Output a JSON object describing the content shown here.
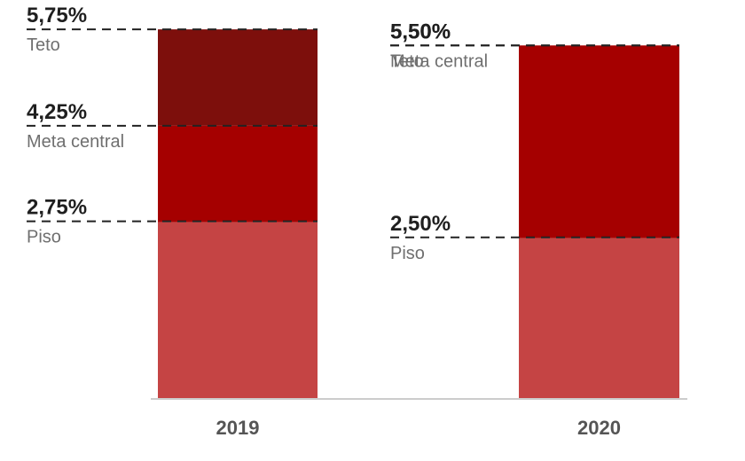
{
  "chart_data": {
    "type": "bar",
    "categories": [
      "2019",
      "2020"
    ],
    "series": [
      {
        "name": "Piso",
        "values": [
          2.75,
          2.5
        ]
      },
      {
        "name": "Meta central",
        "values": [
          4.25,
          5.5
        ]
      },
      {
        "name": "Teto",
        "values": [
          5.75,
          5.5
        ]
      }
    ],
    "annotations": [
      [
        {
          "level": "teto",
          "value": "5,75%",
          "label": "Teto"
        },
        {
          "level": "meta",
          "value": "4,25%",
          "label": "Meta central"
        },
        {
          "level": "piso",
          "value": "2,75%",
          "label": "Piso"
        }
      ],
      [
        {
          "level": "teto",
          "value": "5,50%",
          "label": "Teto"
        },
        {
          "level": "meta",
          "value": "5,50%",
          "label": "Meta central"
        },
        {
          "level": "piso",
          "value": "2,50%",
          "label": "Piso"
        }
      ]
    ],
    "ylim": [
      0,
      5.75
    ],
    "grid": false,
    "colors": {
      "teto": "#7d0f0c",
      "meta": "#a50000",
      "piso": "#c54444",
      "dash": "#222222",
      "baseline": "#cccccc"
    }
  }
}
